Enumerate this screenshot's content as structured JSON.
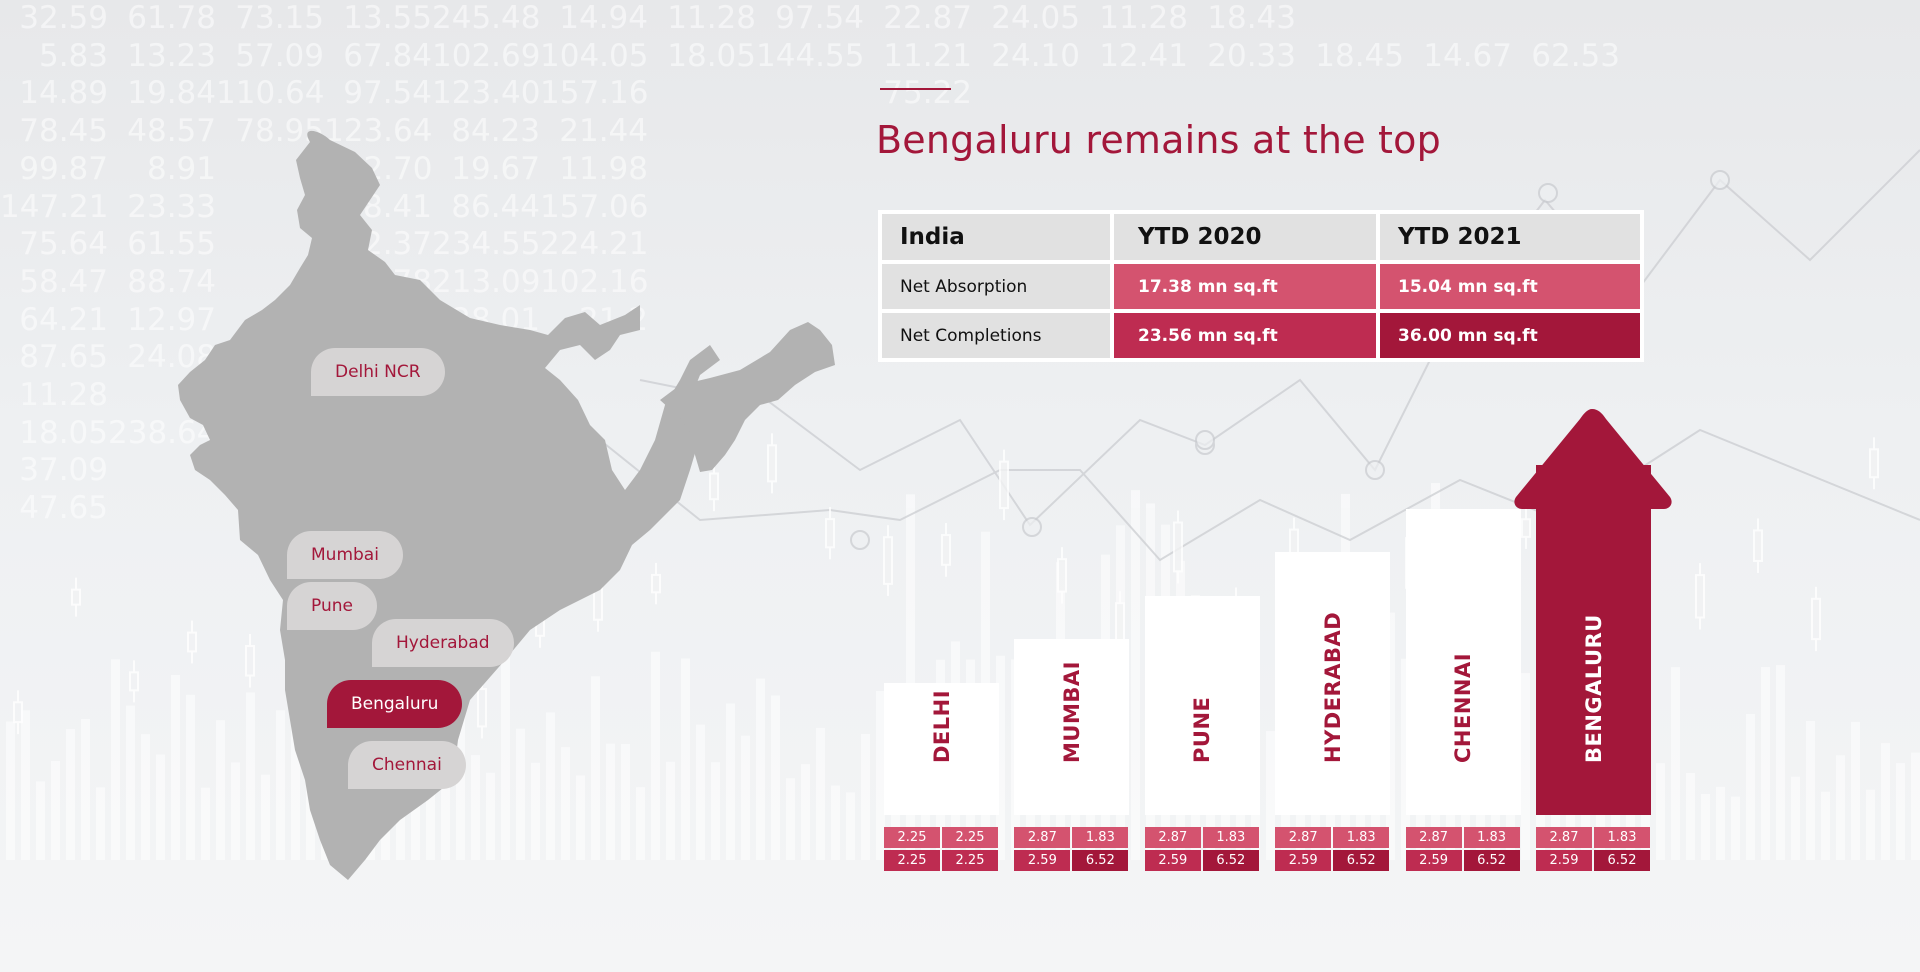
{
  "page": {
    "title": "Bengaluru remains at the top"
  },
  "colors": {
    "accent": "#a3173a",
    "pink": "#d4536f",
    "rose": "#be2c51",
    "maroon": "#a3173a",
    "map_gray": "#b2b2b2",
    "pill_gray": "#d6d4d4"
  },
  "background_numbers": [
    [
      "32.59",
      "61.78",
      "73.15",
      "13.55",
      "245.48",
      "14.94",
      "11.28",
      "97.54",
      "22.87",
      "24.05",
      "11.28",
      "18.43",
      "",
      "",
      ""
    ],
    [
      "5.83",
      "13.23",
      "57.09",
      "67.84",
      "102.69",
      "104.05",
      "18.05",
      "144.55",
      "11.21",
      "24.10",
      "12.41",
      "20.33",
      "18.45",
      "14.67",
      "62.53"
    ],
    [
      "14.89",
      "19.84",
      "110.64",
      "97.54",
      "123.40",
      "157.16",
      "",
      "",
      "75.22",
      "",
      "",
      "",
      "",
      "",
      ""
    ],
    [
      "78.45",
      "48.57",
      "78.95",
      "123.64",
      "84.23",
      "21.44",
      "",
      "",
      "",
      "",
      "",
      "",
      "",
      "",
      ""
    ],
    [
      "99.87",
      "8.91",
      "",
      "102.70",
      "19.67",
      "11.98",
      "",
      "",
      "",
      "",
      "",
      "",
      "",
      "",
      ""
    ],
    [
      "147.21",
      "23.33",
      "",
      "98.41",
      "86.44",
      "157.06",
      "",
      "",
      "",
      "",
      "",
      "",
      "",
      "",
      ""
    ],
    [
      "75.64",
      "61.55",
      "",
      "12.37",
      "234.55",
      "224.21",
      "",
      "",
      "",
      "",
      "",
      "",
      "",
      "",
      ""
    ],
    [
      "58.47",
      "88.74",
      "",
      "36.78",
      "213.09",
      "102.16",
      "",
      "",
      "",
      "",
      "",
      "",
      "",
      "",
      ""
    ],
    [
      "64.21",
      "12.97",
      "",
      "1.78",
      "28.01",
      "21.2",
      "",
      "",
      "",
      "",
      "",
      "",
      "",
      "",
      ""
    ],
    [
      "87.65",
      "24.08",
      "",
      "",
      "152.98",
      "",
      "",
      "",
      "",
      "",
      "",
      "",
      "",
      "",
      ""
    ],
    [
      "11.28",
      "",
      "",
      "",
      "",
      "",
      "",
      "",
      "",
      "",
      "",
      "",
      "",
      "",
      ""
    ],
    [
      "18.05",
      "238.64",
      "",
      "",
      "",
      "",
      "",
      "",
      "",
      "",
      "",
      "",
      "",
      "",
      ""
    ],
    [
      "37.09",
      "",
      "",
      "",
      "",
      "",
      "",
      "",
      "",
      "",
      "",
      "",
      "",
      "",
      ""
    ],
    [
      "47.65",
      "",
      "",
      "",
      "",
      "",
      "",
      "",
      "",
      "",
      "",
      "",
      "",
      "",
      ""
    ]
  ],
  "map": {
    "labels": [
      {
        "name": "Delhi NCR",
        "active": false
      },
      {
        "name": "Mumbai",
        "active": false
      },
      {
        "name": "Pune",
        "active": false
      },
      {
        "name": "Hyderabad",
        "active": false
      },
      {
        "name": "Bengaluru",
        "active": true
      },
      {
        "name": "Chennai",
        "active": false
      }
    ]
  },
  "table": {
    "headers": [
      "India",
      "YTD 2020",
      "YTD 2021"
    ],
    "rows": [
      {
        "label": "Net Absorption",
        "ytd2020": "17.38 mn sq.ft",
        "ytd2021": "15.04 mn sq.ft"
      },
      {
        "label": "Net Completions",
        "ytd2020": "23.56 mn sq.ft",
        "ytd2021": "36.00 mn sq.ft"
      }
    ]
  },
  "chart_data": {
    "type": "bar",
    "categories": [
      "DELHI",
      "MUMBAI",
      "PUNE",
      "HYDERABAD",
      "CHENNAI",
      "BENGALURU"
    ],
    "values": [
      1,
      2,
      3,
      4,
      5,
      6
    ],
    "highlight": "BENGALURU",
    "arrow_on": "BENGALURU",
    "value_tables": [
      {
        "row1": [
          "2.25",
          "2.25"
        ],
        "row2": [
          "2.25",
          "2.25"
        ]
      },
      {
        "row1": [
          "2.87",
          "1.83"
        ],
        "row2": [
          "2.59",
          "6.52"
        ]
      },
      {
        "row1": [
          "2.87",
          "1.83"
        ],
        "row2": [
          "2.59",
          "6.52"
        ]
      },
      {
        "row1": [
          "2.87",
          "1.83"
        ],
        "row2": [
          "2.59",
          "6.52"
        ]
      },
      {
        "row1": [
          "2.87",
          "1.83"
        ],
        "row2": [
          "2.59",
          "6.52"
        ]
      },
      {
        "row1": [
          "2.87",
          "1.83"
        ],
        "row2": [
          "2.59",
          "6.52"
        ]
      }
    ],
    "legend": "none",
    "grid": false
  }
}
